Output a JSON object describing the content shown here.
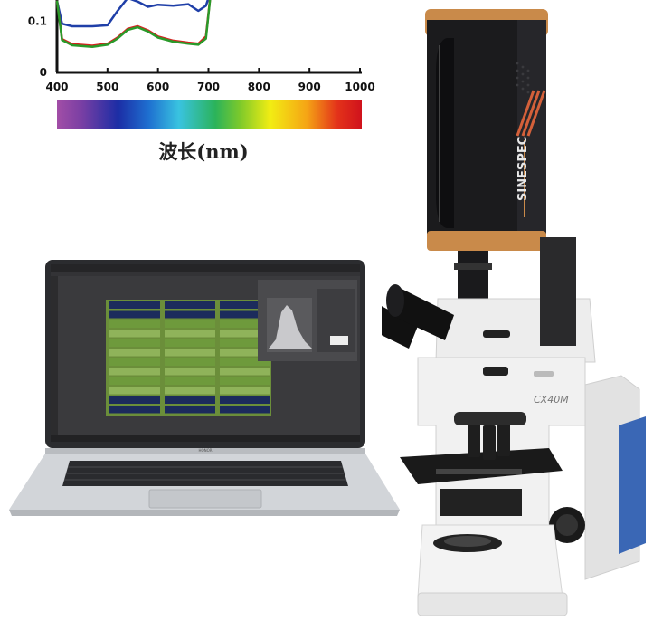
{
  "chart_data": {
    "type": "line",
    "title": "",
    "xlabel": "波长(nm)",
    "ylabel": "",
    "x_ticks": [
      "400",
      "500",
      "600",
      "700",
      "800",
      "900",
      "1000"
    ],
    "y_ticks": [
      "0",
      "0.1"
    ],
    "xlim": [
      400,
      1000
    ],
    "ylim": [
      0,
      0.15
    ],
    "series": [
      {
        "color": "#1f3fa8",
        "x": [
          400,
          410,
          430,
          470,
          500,
          520,
          540,
          560,
          580,
          600,
          630,
          660,
          680,
          695,
          705
        ],
        "y": [
          0.14,
          0.095,
          0.09,
          0.09,
          0.092,
          0.12,
          0.145,
          0.138,
          0.128,
          0.132,
          0.13,
          0.133,
          0.12,
          0.13,
          0.16
        ]
      },
      {
        "color": "#d62020",
        "x": [
          400,
          410,
          430,
          470,
          500,
          520,
          540,
          560,
          580,
          600,
          630,
          660,
          680,
          695,
          705
        ],
        "y": [
          0.14,
          0.065,
          0.055,
          0.052,
          0.056,
          0.068,
          0.085,
          0.09,
          0.082,
          0.07,
          0.062,
          0.058,
          0.056,
          0.07,
          0.16
        ]
      },
      {
        "color": "#2a9a2a",
        "x": [
          400,
          410,
          430,
          470,
          500,
          520,
          540,
          560,
          580,
          600,
          630,
          660,
          680,
          695,
          705
        ],
        "y": [
          0.14,
          0.063,
          0.053,
          0.05,
          0.054,
          0.066,
          0.083,
          0.088,
          0.08,
          0.068,
          0.06,
          0.056,
          0.054,
          0.066,
          0.16
        ]
      }
    ],
    "colorbar": {
      "range": [
        400,
        1000
      ]
    }
  },
  "labels": {
    "microscope_brand": "SINESPEC",
    "microscope_model": "CX40M",
    "laptop_brand": "HONOR"
  },
  "colors": {
    "camera_body": "#1b1b1d",
    "camera_accent": "#c98a4a",
    "microscope_body": "#eeeeee",
    "side_panel": "#3a67b5",
    "laptop_shell": "#cfd2d6"
  },
  "icons": [
    "spectrum-colorbar",
    "laptop",
    "microscope",
    "hyperspectral-camera"
  ]
}
